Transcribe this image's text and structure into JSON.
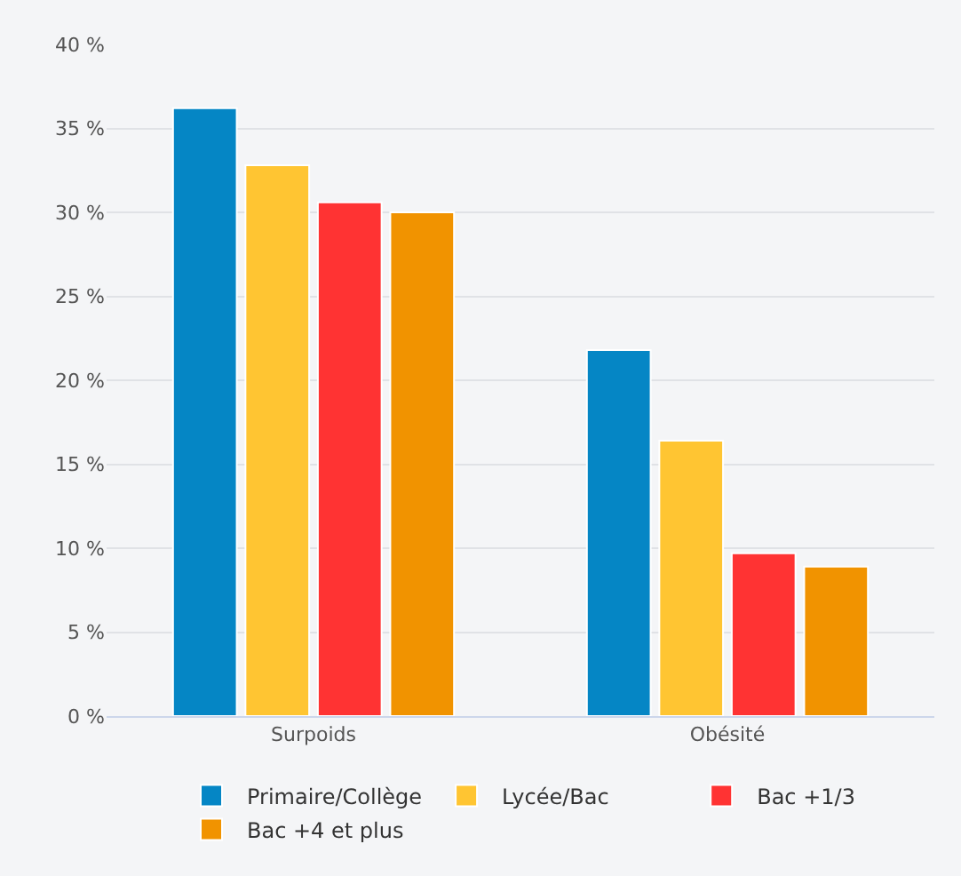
{
  "chart_data": {
    "type": "bar",
    "categories": [
      "Surpoids",
      "Obésité"
    ],
    "series": [
      {
        "name": "Primaire/Collège",
        "color": "#0586c5",
        "values": [
          36.2,
          21.8
        ]
      },
      {
        "name": "Lycée/Bac",
        "color": "#ffc532",
        "values": [
          32.8,
          16.4
        ]
      },
      {
        "name": "Bac +1/3",
        "color": "#ff3333",
        "values": [
          30.6,
          9.7
        ]
      },
      {
        "name": "Bac +4 et plus",
        "color": "#f19300",
        "values": [
          30.0,
          8.9
        ]
      }
    ],
    "ylim": [
      0,
      40
    ],
    "yticks": [
      {
        "value": 0,
        "label": "0 %"
      },
      {
        "value": 5,
        "label": "5 %"
      },
      {
        "value": 10,
        "label": "10 %"
      },
      {
        "value": 15,
        "label": "15 %"
      },
      {
        "value": 20,
        "label": "20 %"
      },
      {
        "value": 25,
        "label": "25 %"
      },
      {
        "value": 30,
        "label": "30 %"
      },
      {
        "value": 35,
        "label": "35 %"
      },
      {
        "value": 40,
        "label": "40 %"
      }
    ],
    "grid": "y",
    "legend": "bottom"
  }
}
